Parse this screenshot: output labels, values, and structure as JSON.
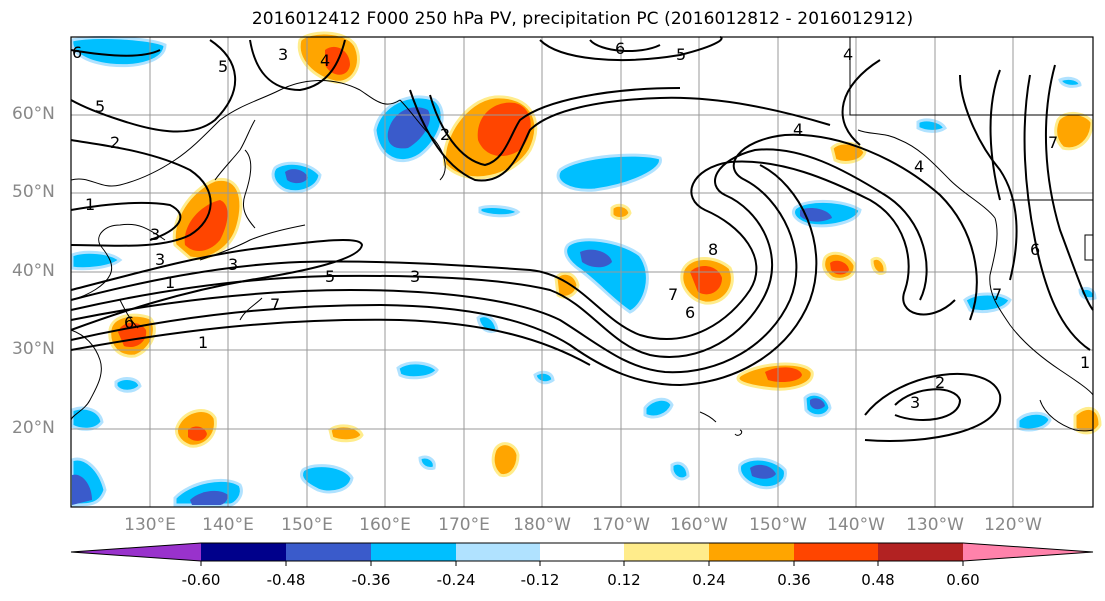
{
  "figure": {
    "title": "2016012412 F000 250 hPa PV, precipitation PC (2016012812 - 2016012912)"
  },
  "map": {
    "lat_labels": [
      "60°N",
      "50°N",
      "40°N",
      "30°N",
      "20°N"
    ],
    "lon_labels": [
      "130°E",
      "140°E",
      "150°E",
      "160°E",
      "170°E",
      "180°W",
      "170°W",
      "160°W",
      "150°W",
      "140°W",
      "130°W",
      "120°W"
    ],
    "contour_labels": [
      "6",
      "5",
      "3",
      "4",
      "6",
      "5",
      "4",
      "5",
      "2",
      "1",
      "3",
      "3",
      "3",
      "2",
      "1",
      "5",
      "3",
      "1",
      "6",
      "7",
      "7",
      "8",
      "6",
      "4",
      "7",
      "6",
      "2",
      "3",
      "7",
      "1",
      "4"
    ]
  },
  "colorbar": {
    "tick_labels": [
      "-0.60",
      "-0.48",
      "-0.36",
      "-0.24",
      "-0.12",
      "0.12",
      "0.24",
      "0.36",
      "0.48",
      "0.60"
    ],
    "colors": [
      "#9932CC",
      "#00008B",
      "#3A5BCB",
      "#00BFFF",
      "#B0E2FF",
      "#FFFFFF",
      "#FFEC8B",
      "#FFA500",
      "#FF4500",
      "#B22222",
      "#FF82AB"
    ]
  }
}
